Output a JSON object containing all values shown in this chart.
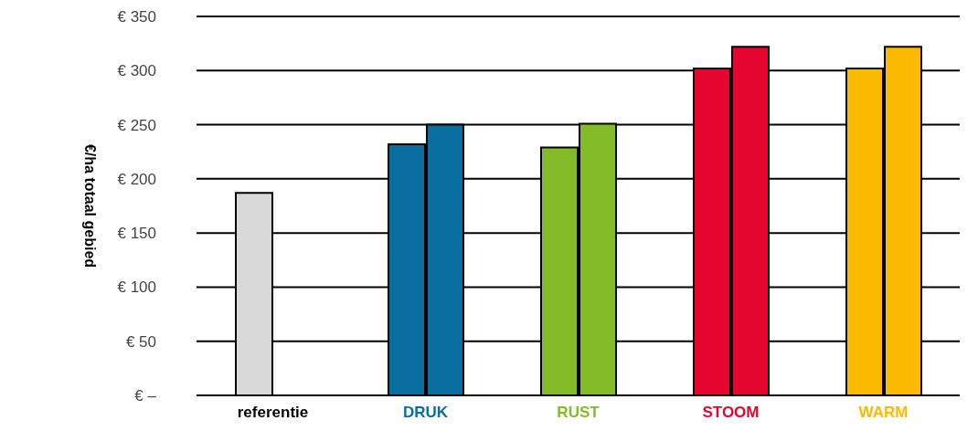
{
  "chart_data": {
    "type": "bar",
    "ylabel": "€/ha totaal gebied",
    "categories": [
      "referentie",
      "DRUK",
      "RUST",
      "STOOM",
      "WARM"
    ],
    "series": [
      {
        "colors": [
          "#d9d9d9",
          "#0a6fa0",
          "#84bb29",
          "#e4062f",
          "#fbba00"
        ],
        "values": [
          187,
          232,
          229,
          302,
          302
        ]
      },
      {
        "colors": [
          "#000000",
          "#0a6fa0",
          "#84bb29",
          "#e4062f",
          "#fbba00"
        ],
        "values": [
          null,
          250,
          251,
          322,
          322
        ]
      }
    ],
    "ylim": [
      0,
      350
    ],
    "yticks": [
      {
        "value": 0,
        "label": "€ –"
      },
      {
        "value": 50,
        "label": "€ 50"
      },
      {
        "value": 100,
        "label": "€ 100"
      },
      {
        "value": 150,
        "label": "€ 150"
      },
      {
        "value": 200,
        "label": "€ 200"
      },
      {
        "value": 250,
        "label": "€ 250"
      },
      {
        "value": 300,
        "label": "€ 300"
      },
      {
        "value": 350,
        "label": "€ 350"
      }
    ],
    "grid": "y",
    "legend": false
  }
}
